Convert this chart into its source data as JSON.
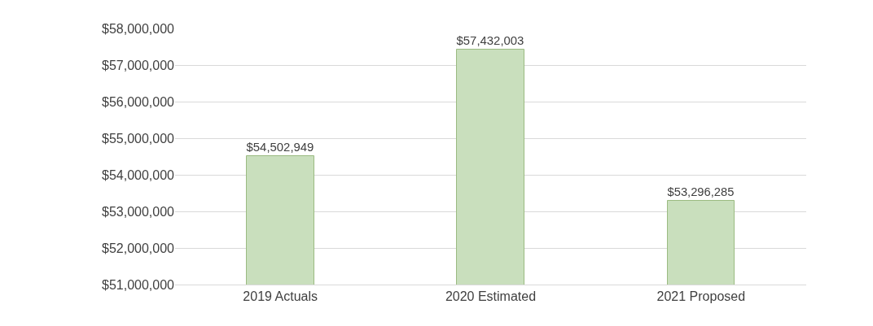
{
  "chart_data": {
    "type": "bar",
    "categories": [
      "2019 Actuals",
      "2020 Estimated",
      "2021 Proposed"
    ],
    "values": [
      54502949,
      57432003,
      53296285
    ],
    "value_labels": [
      "$54,502,949",
      "$57,432,003",
      "$53,296,285"
    ],
    "color": "#c9dfbd",
    "ylim": [
      51000000,
      58000000
    ],
    "yticks": [
      {
        "value": 51000000,
        "label": "$51,000,000"
      },
      {
        "value": 52000000,
        "label": "$52,000,000"
      },
      {
        "value": 53000000,
        "label": "$53,000,000"
      },
      {
        "value": 54000000,
        "label": "$54,000,000"
      },
      {
        "value": 55000000,
        "label": "$55,000,000"
      },
      {
        "value": 56000000,
        "label": "$56,000,000"
      },
      {
        "value": 57000000,
        "label": "$57,000,000"
      },
      {
        "value": 58000000,
        "label": "$58,000,000"
      }
    ],
    "grid": "y",
    "legend": false
  }
}
